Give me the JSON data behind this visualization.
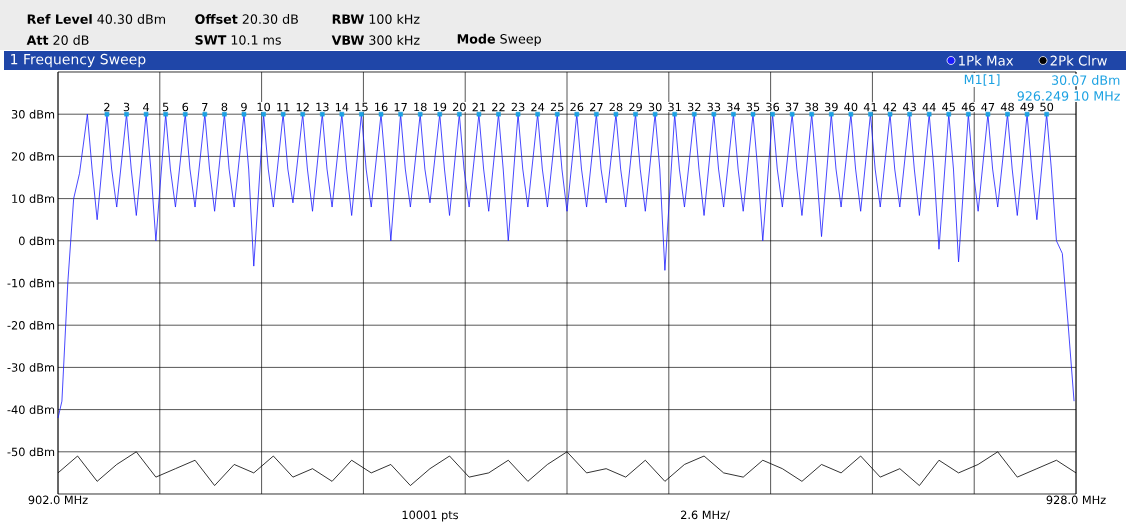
{
  "chart_data": {
    "type": "line",
    "title": "1 Frequency Sweep",
    "xlim": [
      902,
      928
    ],
    "ylim": [
      -60,
      40
    ],
    "xticks": [
      {
        "value": 902,
        "label": "902.0 MHz"
      },
      {
        "value": 904.6,
        "label": null
      },
      {
        "value": 907.2,
        "label": null
      },
      {
        "value": 909.8,
        "label": null
      },
      {
        "value": 912.4,
        "label": null
      },
      {
        "value": 915.0,
        "label": null
      },
      {
        "value": 917.6,
        "label": null
      },
      {
        "value": 920.2,
        "label": null
      },
      {
        "value": 922.8,
        "label": null
      },
      {
        "value": 925.4,
        "label": null
      },
      {
        "value": 928,
        "label": "928.0 MHz"
      }
    ],
    "yticks": [
      {
        "value": -50,
        "label": "-50 dBm"
      },
      {
        "value": -40,
        "label": "-40 dBm"
      },
      {
        "value": -30,
        "label": "-30 dBm"
      },
      {
        "value": -20,
        "label": "-20 dBm"
      },
      {
        "value": -10,
        "label": "-10 dBm"
      },
      {
        "value": 0,
        "label": "0 dBm"
      },
      {
        "value": 10,
        "label": "10 dBm"
      },
      {
        "value": 20,
        "label": "20 dBm"
      },
      {
        "value": 30,
        "label": "30 dBm"
      }
    ],
    "grid": true,
    "legend": "top right",
    "series": [
      {
        "name": "1Pk Max",
        "color": "#1a1aff",
        "x": [
          902.0,
          902.1,
          902.25,
          902.4,
          902.55,
          902.75,
          902.87,
          903.0,
          903.25,
          903.37,
          903.5,
          903.75,
          903.87,
          904.0,
          904.25,
          904.37,
          904.5,
          904.75,
          904.87,
          905.0,
          905.25,
          905.37,
          905.5,
          905.75,
          905.87,
          906.0,
          906.25,
          906.37,
          906.5,
          906.75,
          906.87,
          907.0,
          907.25,
          907.37,
          907.5,
          907.75,
          907.87,
          908.0,
          908.25,
          908.37,
          908.5,
          908.75,
          908.87,
          909.0,
          909.25,
          909.37,
          909.5,
          909.75,
          909.87,
          910.0,
          910.25,
          910.37,
          910.5,
          910.75,
          910.87,
          911.0,
          911.25,
          911.37,
          911.5,
          911.75,
          911.87,
          912.0,
          912.25,
          912.37,
          912.5,
          912.75,
          912.87,
          913.0,
          913.25,
          913.37,
          913.5,
          913.75,
          913.87,
          914.0,
          914.25,
          914.37,
          914.5,
          914.75,
          914.87,
          915.0,
          915.25,
          915.37,
          915.5,
          915.75,
          915.87,
          916.0,
          916.25,
          916.37,
          916.5,
          916.75,
          916.87,
          917.0,
          917.25,
          917.37,
          917.5,
          917.75,
          917.87,
          918.0,
          918.25,
          918.37,
          918.5,
          918.75,
          918.87,
          919.0,
          919.25,
          919.37,
          919.5,
          919.75,
          919.87,
          920.0,
          920.25,
          920.37,
          920.5,
          920.75,
          920.87,
          921.0,
          921.25,
          921.37,
          921.5,
          921.75,
          921.87,
          922.0,
          922.25,
          922.37,
          922.5,
          922.75,
          922.87,
          923.0,
          923.25,
          923.37,
          923.5,
          923.75,
          923.87,
          924.0,
          924.25,
          924.37,
          924.5,
          924.75,
          924.87,
          925.0,
          925.25,
          925.37,
          925.5,
          925.75,
          925.87,
          926.0,
          926.25,
          926.37,
          926.5,
          926.75,
          926.87,
          927.0,
          927.25,
          927.37,
          927.5,
          927.65,
          927.8,
          927.95
        ],
        "values": [
          -42,
          -38,
          -10,
          10,
          16,
          30,
          17,
          5,
          30,
          17,
          8,
          30,
          17,
          6,
          30,
          17,
          0,
          30,
          17,
          8,
          30,
          17,
          8,
          30,
          17,
          7,
          30,
          17,
          8,
          30,
          17,
          -6,
          30,
          17,
          8,
          30,
          17,
          9,
          30,
          17,
          7,
          30,
          17,
          8,
          30,
          17,
          6,
          30,
          17,
          8,
          30,
          17,
          0,
          30,
          17,
          8,
          30,
          17,
          9,
          30,
          17,
          6,
          30,
          17,
          8,
          30,
          17,
          7,
          30,
          17,
          0,
          30,
          17,
          8,
          30,
          17,
          8,
          30,
          17,
          7,
          30,
          17,
          8,
          30,
          17,
          9,
          30,
          17,
          8,
          30,
          17,
          7,
          30,
          17,
          -7,
          30,
          17,
          8,
          30,
          17,
          6,
          30,
          17,
          8,
          30,
          17,
          7,
          30,
          17,
          0,
          30,
          17,
          8,
          30,
          17,
          6,
          30,
          17,
          1,
          30,
          17,
          8,
          30,
          17,
          7,
          30,
          17,
          8,
          30,
          17,
          8,
          30,
          17,
          6,
          30,
          17,
          -2,
          30,
          17,
          -5,
          30,
          17,
          7,
          30,
          17,
          8,
          30,
          17,
          6,
          30,
          17,
          5,
          30,
          17,
          0,
          -3,
          -20,
          -38
        ]
      },
      {
        "name": "2Pk Clrw",
        "color": "#000000",
        "x": [
          902.0,
          902.5,
          903.0,
          903.5,
          904.0,
          904.5,
          905.0,
          905.5,
          906.0,
          906.5,
          907.0,
          907.5,
          908.0,
          908.5,
          909.0,
          909.5,
          910.0,
          910.5,
          911.0,
          911.5,
          912.0,
          912.5,
          913.0,
          913.5,
          914.0,
          914.5,
          915.0,
          915.5,
          916.0,
          916.5,
          917.0,
          917.5,
          918.0,
          918.5,
          919.0,
          919.5,
          920.0,
          920.5,
          921.0,
          921.5,
          922.0,
          922.5,
          923.0,
          923.5,
          924.0,
          924.5,
          925.0,
          925.5,
          926.0,
          926.5,
          927.0,
          927.5,
          928.0
        ],
        "values": [
          -55,
          -51,
          -57,
          -53,
          -50,
          -56,
          -54,
          -52,
          -58,
          -53,
          -55,
          -51,
          -56,
          -54,
          -57,
          -52,
          -55,
          -53,
          -58,
          -54,
          -51,
          -56,
          -55,
          -52,
          -57,
          -53,
          -50,
          -55,
          -54,
          -56,
          -52,
          -57,
          -53,
          -51,
          -55,
          -56,
          -52,
          -54,
          -57,
          -53,
          -55,
          -51,
          -56,
          -54,
          -58,
          -52,
          -55,
          -53,
          -50,
          -56,
          -54,
          -52,
          -55
        ]
      },
      {
        "type": "scatter",
        "color": "#1ba1e2",
        "marker": "square",
        "x": [
          903.25,
          903.75,
          904.25,
          904.75,
          905.25,
          905.75,
          906.25,
          906.75,
          907.25,
          907.75,
          908.25,
          908.75,
          909.25,
          909.75,
          910.25,
          910.75,
          911.25,
          911.75,
          912.25,
          912.75,
          913.25,
          913.75,
          914.25,
          914.75,
          915.25,
          915.75,
          916.25,
          916.75,
          917.25,
          917.75,
          918.25,
          918.75,
          919.25,
          919.75,
          920.25,
          920.75,
          921.25,
          921.75,
          922.25,
          922.75,
          923.25,
          923.75,
          924.25,
          924.75,
          925.25,
          925.75,
          926.25,
          926.75,
          927.25
        ],
        "values": [
          30,
          30,
          30,
          30,
          30,
          30,
          30,
          30,
          30,
          30,
          30,
          30,
          30,
          30,
          30,
          30,
          30,
          30,
          30,
          30,
          30,
          30,
          30,
          30,
          30,
          30,
          30,
          30,
          30,
          30,
          30,
          30,
          30,
          30,
          30,
          30,
          30,
          30,
          30,
          30,
          30,
          30,
          30,
          30,
          30,
          30,
          30,
          30,
          30
        ]
      }
    ],
    "annotations": [
      "**Ref Level** 40.30 dBm",
      "**Offset** 20.30 dB",
      "**RBW** 100 kHz",
      "**Att** 20 dB",
      "**SWT** 10.1 ms",
      "**VBW** 300 kHz",
      "**Mode** Sweep",
      "M1[1]",
      "30.07 dBm",
      "926.249 10 MHz",
      "10001 pts",
      "2.6 MHz/",
      {
        "text": "2",
        "x": 903.25,
        "y": 30
      },
      {
        "text": "3",
        "x": 903.75,
        "y": 30
      },
      {
        "text": "4",
        "x": 904.25,
        "y": 30
      },
      {
        "text": "5",
        "x": 904.75,
        "y": 30
      },
      {
        "text": "6",
        "x": 905.25,
        "y": 30
      },
      {
        "text": "7",
        "x": 905.75,
        "y": 30
      },
      {
        "text": "8",
        "x": 906.25,
        "y": 30
      },
      {
        "text": "9",
        "x": 906.75,
        "y": 30
      },
      {
        "text": "10",
        "x": 907.25,
        "y": 30
      },
      {
        "text": "11",
        "x": 907.75,
        "y": 30
      },
      {
        "text": "12",
        "x": 908.25,
        "y": 30
      },
      {
        "text": "13",
        "x": 908.75,
        "y": 30
      },
      {
        "text": "14",
        "x": 909.25,
        "y": 30
      },
      {
        "text": "15",
        "x": 909.75,
        "y": 30
      },
      {
        "text": "16",
        "x": 910.25,
        "y": 30
      },
      {
        "text": "17",
        "x": 910.75,
        "y": 30
      },
      {
        "text": "18",
        "x": 911.25,
        "y": 30
      },
      {
        "text": "19",
        "x": 911.75,
        "y": 30
      },
      {
        "text": "20",
        "x": 912.25,
        "y": 30
      },
      {
        "text": "21",
        "x": 912.75,
        "y": 30
      },
      {
        "text": "22",
        "x": 913.25,
        "y": 30
      },
      {
        "text": "23",
        "x": 913.75,
        "y": 30
      },
      {
        "text": "24",
        "x": 914.25,
        "y": 30
      },
      {
        "text": "25",
        "x": 914.75,
        "y": 30
      },
      {
        "text": "26",
        "x": 915.25,
        "y": 30
      },
      {
        "text": "27",
        "x": 915.75,
        "y": 30
      },
      {
        "text": "28",
        "x": 916.25,
        "y": 30
      },
      {
        "text": "29",
        "x": 916.75,
        "y": 30
      },
      {
        "text": "30",
        "x": 917.25,
        "y": 30
      },
      {
        "text": "31",
        "x": 917.75,
        "y": 30
      },
      {
        "text": "32",
        "x": 918.25,
        "y": 30
      },
      {
        "text": "33",
        "x": 918.75,
        "y": 30
      },
      {
        "text": "34",
        "x": 919.25,
        "y": 30
      },
      {
        "text": "35",
        "x": 919.75,
        "y": 30
      },
      {
        "text": "36",
        "x": 920.25,
        "y": 30
      },
      {
        "text": "37",
        "x": 920.75,
        "y": 30
      },
      {
        "text": "38",
        "x": 921.25,
        "y": 30
      },
      {
        "text": "39",
        "x": 921.75,
        "y": 30
      },
      {
        "text": "40",
        "x": 922.25,
        "y": 30
      },
      {
        "text": "41",
        "x": 922.75,
        "y": 30
      },
      {
        "text": "42",
        "x": 923.25,
        "y": 30
      },
      {
        "text": "43",
        "x": 923.75,
        "y": 30
      },
      {
        "text": "44",
        "x": 924.25,
        "y": 30
      },
      {
        "text": "45",
        "x": 924.75,
        "y": 30
      },
      {
        "text": "46",
        "x": 925.25,
        "y": 30
      },
      {
        "text": "47",
        "x": 925.75,
        "y": 30
      },
      {
        "text": "48",
        "x": 926.25,
        "y": 30
      },
      {
        "text": "49",
        "x": 926.75,
        "y": 30
      },
      {
        "text": "50",
        "x": 927.25,
        "y": 30
      }
    ]
  }
}
